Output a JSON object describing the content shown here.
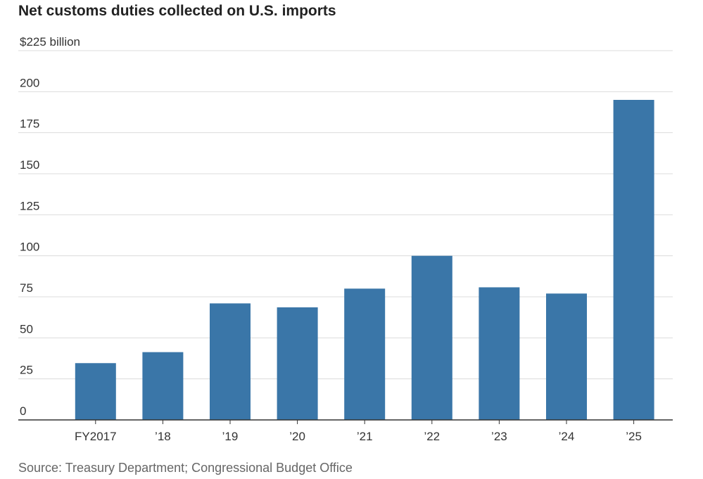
{
  "title": "Net customs duties collected on U.S. imports",
  "source": "Source: Treasury Department; Congressional Budget Office",
  "colors": {
    "bar": "#3a76a8",
    "grid": "#dcdcdc",
    "axis": "#333333"
  },
  "chart_data": {
    "type": "bar",
    "title": "Net customs duties collected on U.S. imports",
    "xlabel": "",
    "ylabel": "",
    "y_unit_label": "$225 billion",
    "ylim": [
      0,
      225
    ],
    "yticks": [
      0,
      25,
      50,
      75,
      100,
      125,
      150,
      175,
      200,
      225
    ],
    "ytick_labels": [
      "0",
      "25",
      "50",
      "75",
      "100",
      "125",
      "150",
      "175",
      "200",
      "$225 billion"
    ],
    "categories": [
      "FY2017",
      "’18",
      "’19",
      "’20",
      "’21",
      "’22",
      "’23",
      "’24",
      "’25"
    ],
    "values": [
      34.6,
      41.3,
      71,
      68.6,
      80,
      100,
      80.8,
      77,
      195
    ],
    "grid": true,
    "legend": "none"
  }
}
